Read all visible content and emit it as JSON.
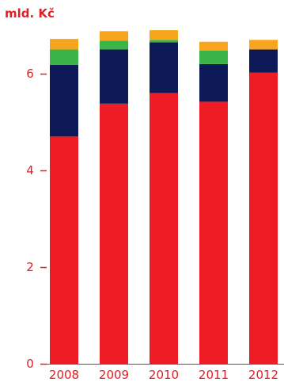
{
  "chart_data": {
    "type": "bar",
    "stacked": true,
    "unit_label": "mld. Kč",
    "categories": [
      "2008",
      "2009",
      "2010",
      "2011",
      "2012"
    ],
    "series": [
      {
        "color": "#ee1c25",
        "values": [
          4.7,
          5.38,
          5.6,
          5.42,
          6.02
        ]
      },
      {
        "color": "#0d1a57",
        "values": [
          1.48,
          1.12,
          1.05,
          0.78,
          0.48
        ]
      },
      {
        "color": "#3bb44a",
        "values": [
          0.32,
          0.18,
          0.05,
          0.28,
          0.0
        ]
      },
      {
        "color": "#f7a51c",
        "values": [
          0.22,
          0.2,
          0.2,
          0.18,
          0.2
        ]
      }
    ],
    "yticks": [
      0,
      2,
      4,
      6
    ],
    "ylim": [
      0,
      7
    ]
  }
}
